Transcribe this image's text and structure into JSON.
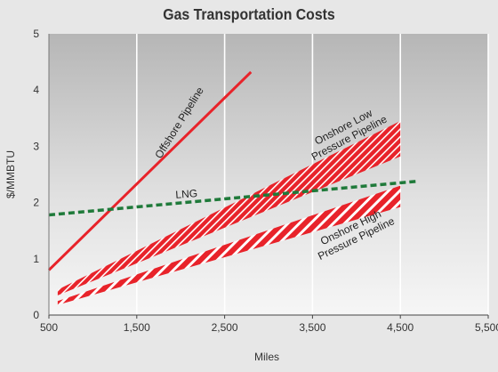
{
  "chart_data": {
    "type": "line",
    "title": "Gas Transportation Costs",
    "xlabel": "Miles",
    "ylabel": "$/MMBTU",
    "xlim": [
      500,
      5500
    ],
    "ylim": [
      0,
      5
    ],
    "x_ticks": [
      500,
      1500,
      2500,
      3500,
      4500,
      5500
    ],
    "x_tick_labels": [
      "500",
      "1,500",
      "2,500",
      "3,500",
      "4,500",
      "5,500"
    ],
    "y_ticks": [
      0,
      1,
      2,
      3,
      4,
      5
    ],
    "y_tick_labels": [
      "0",
      "1",
      "2",
      "3",
      "4",
      "5"
    ],
    "grid": "vertical",
    "series": [
      {
        "name": "Offshore Pipeline",
        "style": "solid-line",
        "color": "#e8232a",
        "x": [
          500,
          2800
        ],
        "y": [
          0.8,
          4.32
        ]
      },
      {
        "name": "LNG",
        "style": "dashed-line",
        "color": "#1f7a3a",
        "x": [
          500,
          4700
        ],
        "y": [
          1.78,
          2.38
        ]
      },
      {
        "name": "Onshore Low Pressure Pipeline",
        "style": "hatched-band",
        "color": "#e8232a",
        "x": [
          600,
          4500
        ],
        "y_low": [
          0.35,
          2.82
        ],
        "y_high": [
          0.45,
          3.45
        ]
      },
      {
        "name": "Onshore High Pressure Pipeline",
        "style": "hatched-band",
        "color": "#e8232a",
        "x": [
          600,
          4500
        ],
        "y_low": [
          0.18,
          1.92
        ],
        "y_high": [
          0.25,
          2.3
        ]
      }
    ],
    "annotations": [
      {
        "text": "Offshore Pipeline",
        "series": 0
      },
      {
        "text": "LNG",
        "series": 1
      },
      {
        "lines": [
          "Onshore Low",
          "Pressure Pipeline"
        ],
        "series": 2
      },
      {
        "lines": [
          "Onshore High",
          "Pressure Pipeline"
        ],
        "series": 3
      }
    ]
  }
}
